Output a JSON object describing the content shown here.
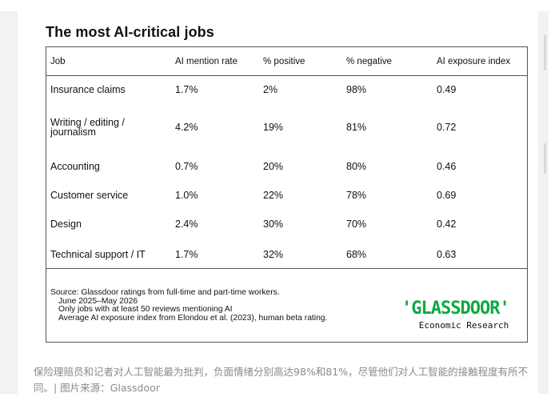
{
  "title": "The most AI-critical jobs",
  "table": {
    "headers": [
      "Job",
      "AI mention rate",
      "% positive",
      "% negative",
      "AI exposure index"
    ],
    "rows": [
      {
        "job": "Insurance claims",
        "mention": "1.7%",
        "positive": "2%",
        "negative": "98%",
        "exposure": "0.49"
      },
      {
        "job_line1": "Writing / editing /",
        "job_line2": "journalism",
        "mention": "4.2%",
        "positive": "19%",
        "negative": "81%",
        "exposure": "0.72"
      },
      {
        "job": "Accounting",
        "mention": "0.7%",
        "positive": "20%",
        "negative": "80%",
        "exposure": "0.46"
      },
      {
        "job": "Customer service",
        "mention": "1.0%",
        "positive": "22%",
        "negative": "78%",
        "exposure": "0.69"
      },
      {
        "job": "Design",
        "mention": "2.4%",
        "positive": "30%",
        "negative": "70%",
        "exposure": "0.42"
      },
      {
        "job": "Technical support / IT",
        "mention": "1.7%",
        "positive": "32%",
        "negative": "68%",
        "exposure": "0.63"
      }
    ]
  },
  "source": {
    "line1": "Source: Glassdoor ratings from full-time and part-time workers.",
    "line2": "June 2025–May 2026",
    "line3": "Only jobs with at least 50 reviews mentioning AI",
    "line4": "Average AI exposure index from Elondou et al. (2023), human beta rating."
  },
  "logo": {
    "wordmark": "'GLASSDOOR'",
    "sub": "Economic Research",
    "color": "#0caa41"
  },
  "caption": "保险理赔员和记者对人工智能最为批判，负面情绪分别高达98%和81%，尽管他们对人工智能的接触程度有所不同。| 图片来源：Glassdoor"
}
